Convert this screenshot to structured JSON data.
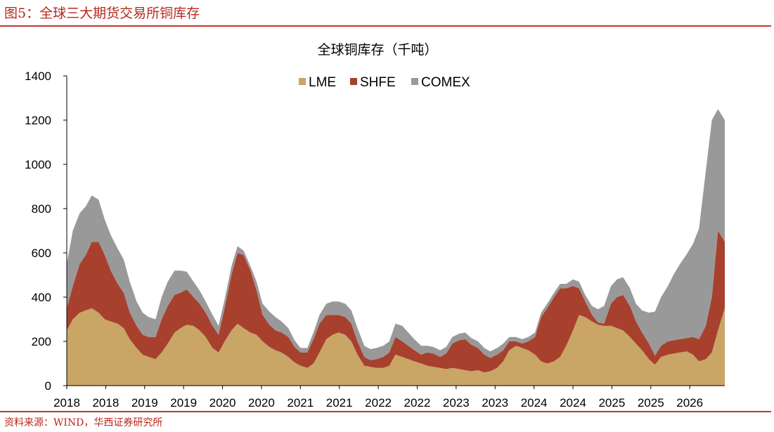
{
  "figure": {
    "title": "图5：全球三大期货交易所铜库存",
    "source": "资料来源：WIND，华西证券研究所"
  },
  "chart_data": {
    "type": "area",
    "stacked": true,
    "title": "全球铜库存（千吨）",
    "xlabel": "",
    "ylabel": "",
    "ylim": [
      0,
      1400
    ],
    "yticks": [
      0,
      200,
      400,
      600,
      800,
      1000,
      1200,
      1400
    ],
    "x_tick_labels": [
      "2018",
      "2018",
      "2019",
      "2019",
      "2020",
      "2020",
      "2021",
      "2021",
      "2022",
      "2022",
      "2023",
      "2023",
      "2024",
      "2024",
      "2025",
      "2025",
      "2026"
    ],
    "legend_position": "top-center",
    "grid": false,
    "colors": {
      "LME": "#c9a566",
      "SHFE": "#a8402e",
      "COMEX": "#999999"
    },
    "x": [
      2018.0,
      2018.08,
      2018.17,
      2018.25,
      2018.33,
      2018.42,
      2018.5,
      2018.58,
      2018.67,
      2018.75,
      2018.83,
      2018.92,
      2019.0,
      2019.08,
      2019.17,
      2019.25,
      2019.33,
      2019.42,
      2019.5,
      2019.58,
      2019.67,
      2019.75,
      2019.83,
      2019.92,
      2020.0,
      2020.08,
      2020.17,
      2020.25,
      2020.33,
      2020.42,
      2020.5,
      2020.58,
      2020.67,
      2020.75,
      2020.83,
      2020.92,
      2021.0,
      2021.08,
      2021.17,
      2021.25,
      2021.33,
      2021.42,
      2021.5,
      2021.58,
      2021.67,
      2021.75,
      2021.83,
      2021.92,
      2022.0,
      2022.08,
      2022.17,
      2022.25,
      2022.33,
      2022.42,
      2022.5,
      2022.58,
      2022.67,
      2022.75,
      2022.83,
      2022.92,
      2023.0,
      2023.08,
      2023.17,
      2023.25,
      2023.33,
      2023.42,
      2023.5,
      2023.58,
      2023.67,
      2023.75,
      2023.83,
      2023.92,
      2024.0,
      2024.08,
      2024.17,
      2024.25,
      2024.33,
      2024.42,
      2024.5,
      2024.58,
      2024.67,
      2024.75,
      2024.83,
      2024.92,
      2025.0,
      2025.08,
      2025.17,
      2025.25,
      2025.33,
      2025.42,
      2025.5,
      2025.58,
      2025.67,
      2025.75,
      2025.83,
      2025.92,
      2026.0,
      2026.08,
      2026.17,
      2026.25,
      2026.33,
      2026.42,
      2026.5,
      2026.58,
      2026.67
    ],
    "series": [
      {
        "name": "LME",
        "values": [
          250,
          300,
          330,
          340,
          350,
          330,
          300,
          290,
          280,
          260,
          210,
          170,
          140,
          130,
          120,
          150,
          190,
          240,
          260,
          275,
          270,
          250,
          220,
          170,
          150,
          200,
          250,
          280,
          260,
          240,
          230,
          200,
          175,
          160,
          150,
          130,
          105,
          90,
          80,
          100,
          150,
          210,
          230,
          240,
          230,
          200,
          140,
          90,
          85,
          80,
          80,
          90,
          140,
          130,
          120,
          110,
          100,
          90,
          85,
          80,
          75,
          80,
          75,
          70,
          65,
          70,
          60,
          65,
          80,
          110,
          160,
          180,
          170,
          160,
          140,
          110,
          100,
          110,
          130,
          180,
          250,
          320,
          310,
          290,
          275,
          270,
          270,
          260,
          250,
          220,
          190,
          160,
          120,
          95,
          130,
          140,
          145,
          150,
          155,
          140,
          110,
          120,
          150,
          250,
          350
        ]
      },
      {
        "name": "SHFE",
        "values": [
          100,
          150,
          220,
          250,
          300,
          320,
          290,
          230,
          180,
          160,
          120,
          100,
          90,
          90,
          100,
          150,
          170,
          170,
          160,
          160,
          130,
          120,
          110,
          100,
          80,
          150,
          250,
          320,
          330,
          280,
          200,
          120,
          100,
          90,
          90,
          90,
          70,
          60,
          70,
          110,
          130,
          110,
          90,
          80,
          80,
          80,
          60,
          40,
          30,
          40,
          50,
          60,
          80,
          70,
          60,
          50,
          40,
          60,
          60,
          50,
          70,
          110,
          130,
          140,
          120,
          100,
          80,
          60,
          60,
          50,
          40,
          20,
          20,
          40,
          80,
          200,
          250,
          290,
          310,
          260,
          200,
          120,
          70,
          30,
          10,
          10,
          100,
          140,
          160,
          140,
          100,
          80,
          70,
          40,
          50,
          60,
          60,
          60,
          60,
          80,
          100,
          150,
          250,
          450,
          300
        ]
      },
      {
        "name": "COMEX",
        "values": [
          200,
          250,
          230,
          220,
          210,
          190,
          160,
          160,
          160,
          150,
          140,
          110,
          100,
          90,
          80,
          100,
          110,
          110,
          100,
          80,
          70,
          60,
          50,
          50,
          40,
          40,
          40,
          30,
          20,
          20,
          40,
          50,
          60,
          60,
          50,
          40,
          30,
          20,
          20,
          30,
          40,
          50,
          60,
          60,
          60,
          60,
          60,
          50,
          50,
          50,
          50,
          50,
          60,
          70,
          60,
          50,
          40,
          30,
          30,
          30,
          30,
          30,
          30,
          30,
          30,
          30,
          30,
          30,
          30,
          30,
          20,
          20,
          20,
          20,
          20,
          20,
          20,
          20,
          20,
          20,
          30,
          30,
          30,
          40,
          60,
          80,
          80,
          80,
          80,
          80,
          80,
          100,
          140,
          200,
          220,
          250,
          300,
          340,
          380,
          420,
          500,
          700,
          800,
          550,
          550
        ]
      }
    ]
  }
}
